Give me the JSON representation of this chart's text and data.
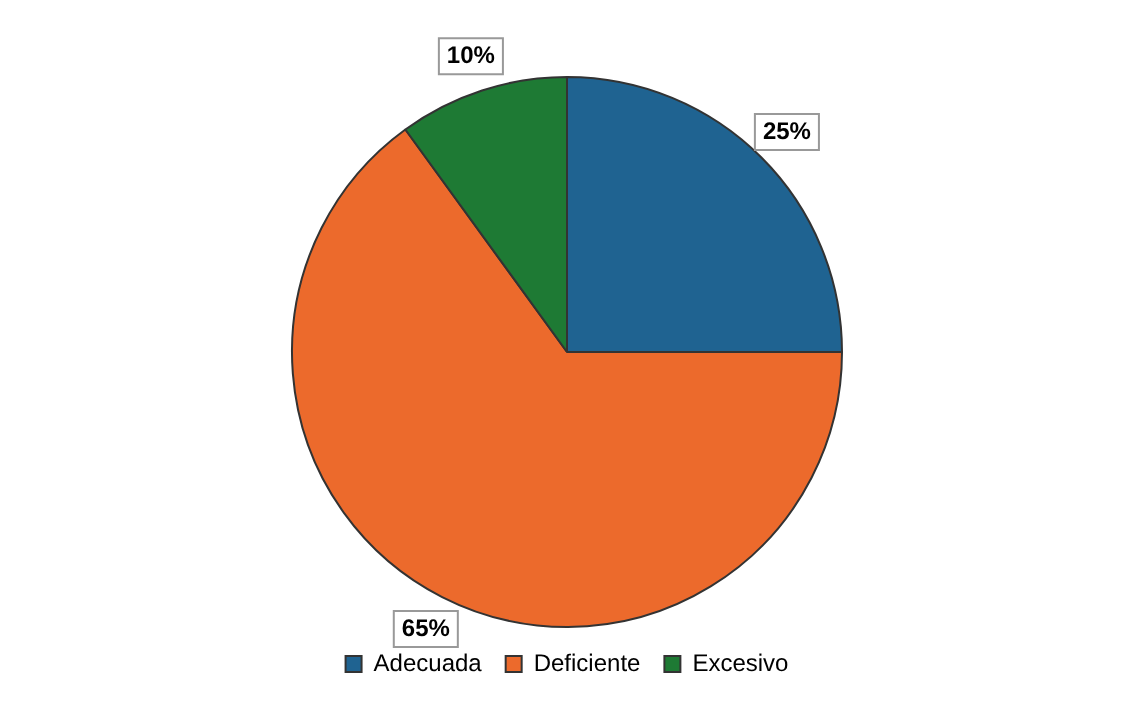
{
  "chart_data": {
    "type": "pie",
    "categories": [
      "Adecuada",
      "Deficiente",
      "Excesivo"
    ],
    "values": [
      25,
      65,
      10
    ],
    "colors": [
      "#1f6391",
      "#ec6a2c",
      "#1e7a34"
    ],
    "value_labels": [
      "25%",
      "65%",
      "10%"
    ],
    "legend": "bottom"
  }
}
